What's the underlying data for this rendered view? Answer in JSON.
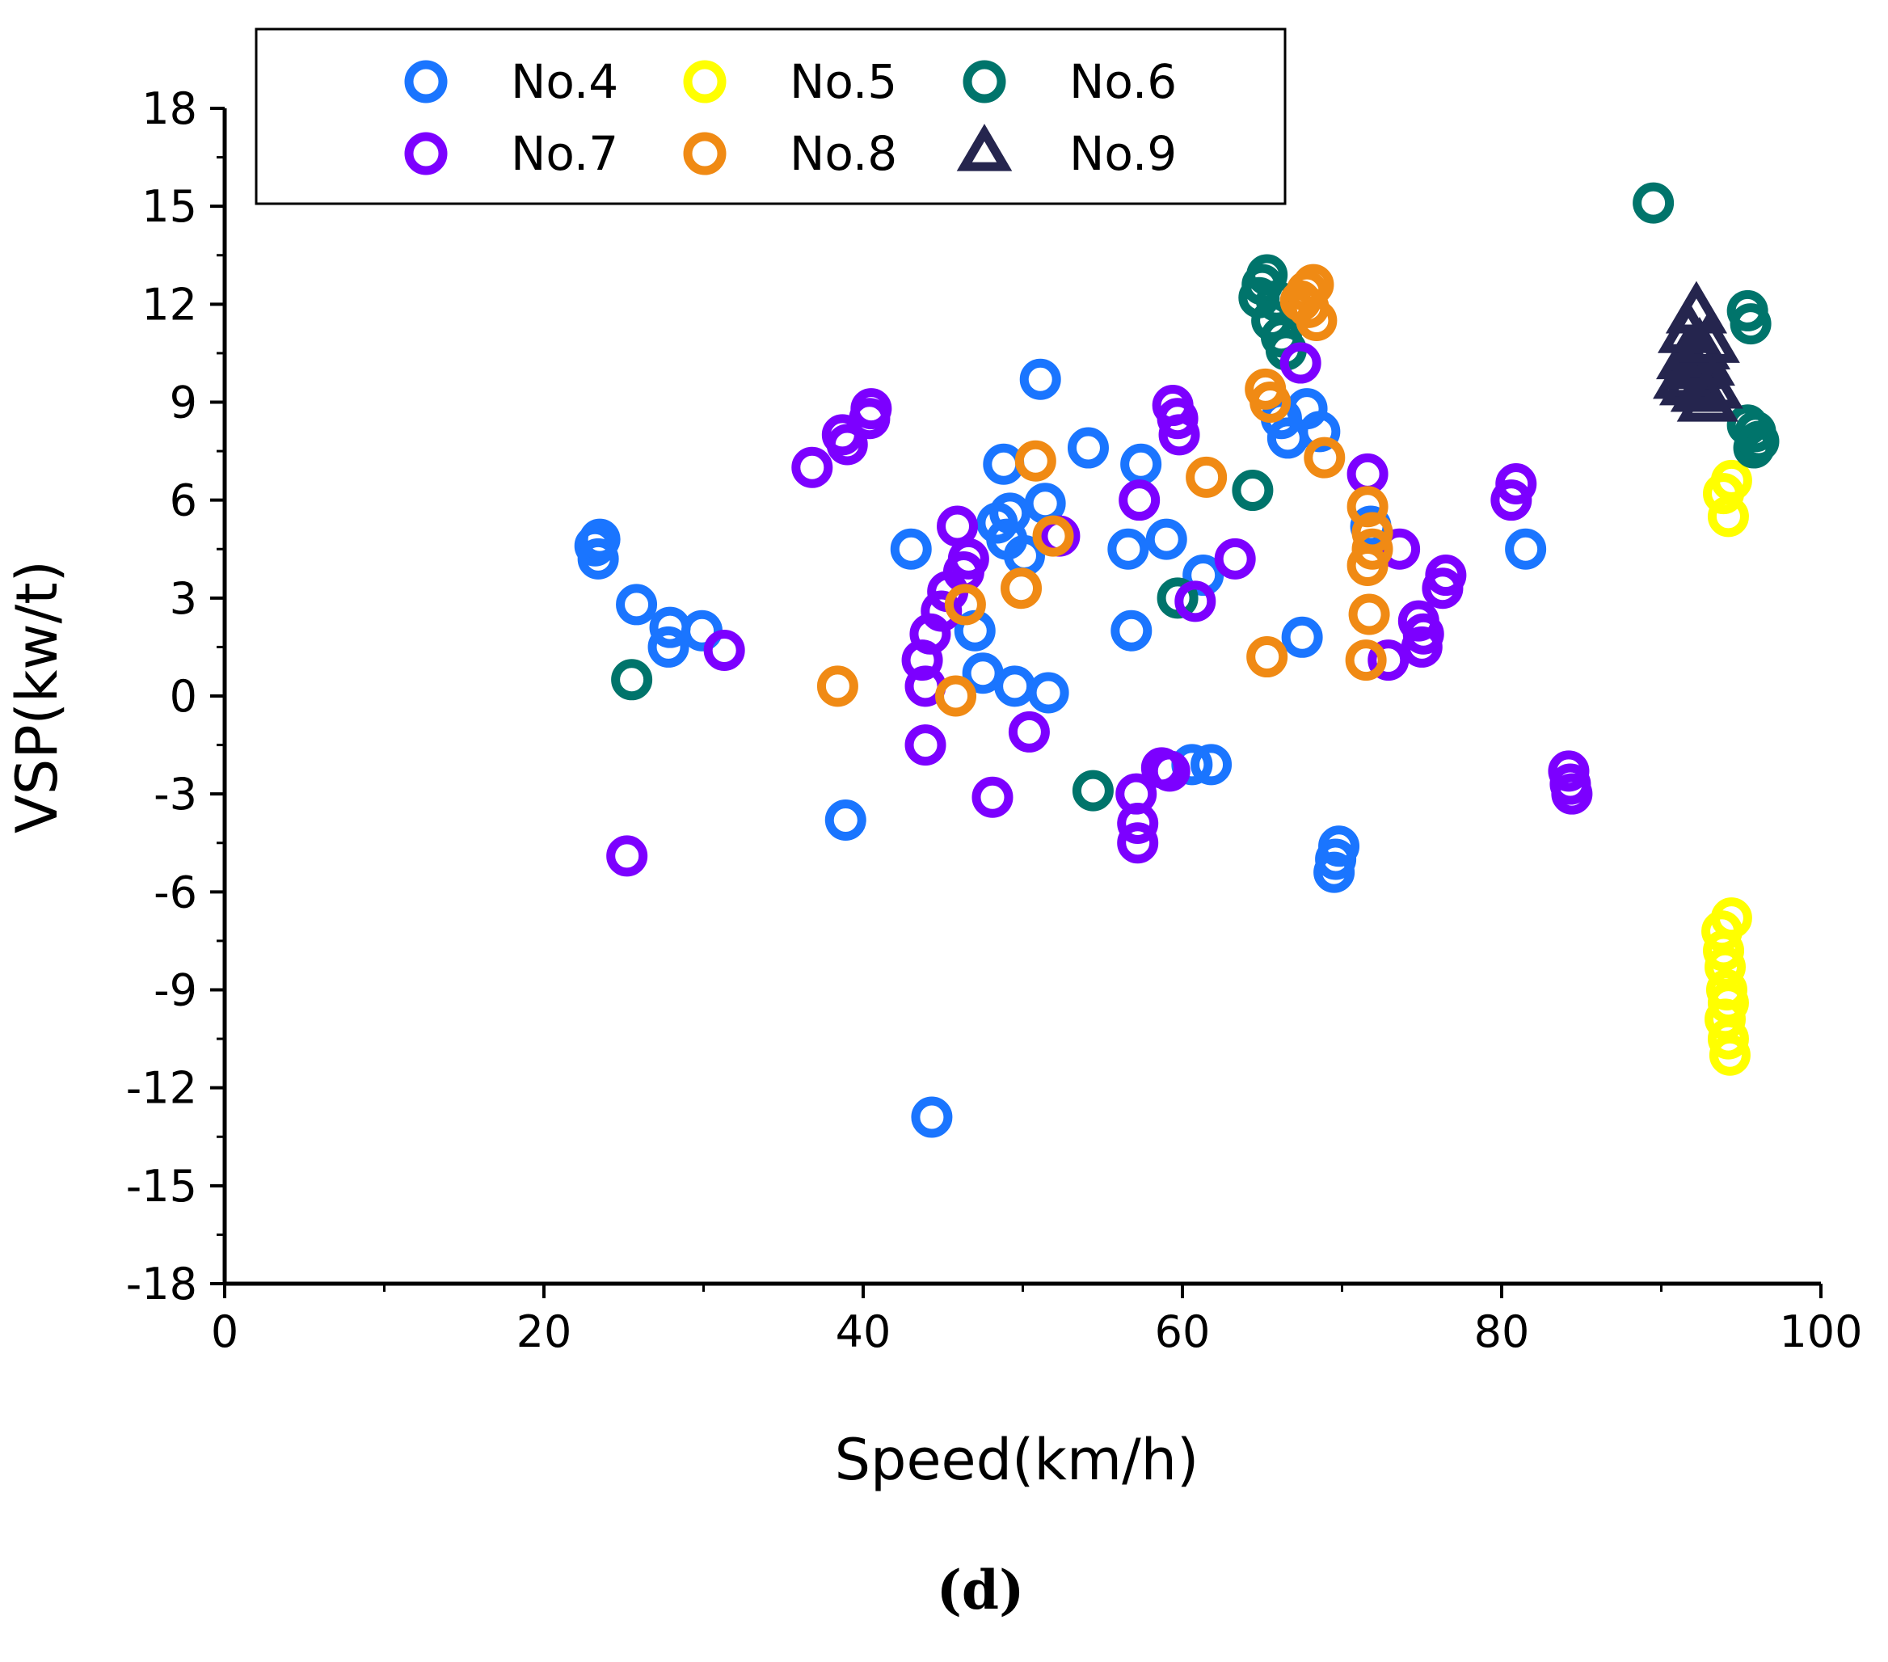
{
  "chart_data": {
    "type": "scatter",
    "title": "",
    "xlabel": "Speed(km/h)",
    "ylabel": "VSP(kw/t)",
    "panel_label": "(d)",
    "xlim": [
      0,
      100
    ],
    "ylim": [
      -18,
      18
    ],
    "x_major_ticks": [
      0,
      20,
      40,
      60,
      80,
      100
    ],
    "x_tick_labels": [
      "0",
      "20",
      "40",
      "60",
      "80",
      "100"
    ],
    "x_minor_ticks": [
      10,
      30,
      50,
      70,
      90
    ],
    "y_major_ticks": [
      18,
      15,
      12,
      9,
      6,
      3,
      0,
      -3,
      -6,
      -9,
      -12,
      -15,
      -18
    ],
    "y_tick_labels": [
      "18",
      "15",
      "12",
      "9",
      "6",
      "3",
      "0",
      "-3",
      "-6",
      "-9",
      "-12",
      "-15",
      "-18"
    ],
    "y_minor_ticks": [
      16.5,
      13.5,
      10.5,
      7.5,
      4.5,
      1.5,
      -1.5,
      -4.5,
      -7.5,
      -10.5,
      -13.5,
      -16.5
    ],
    "grid": false,
    "legend": {
      "placement": "top-left",
      "columns": 3,
      "entries": [
        "No.4",
        "No.5",
        "No.6",
        "No.7",
        "No.8",
        "No.9"
      ]
    },
    "series": [
      {
        "name": "No.4",
        "marker": "circle",
        "color": "#1a75ff",
        "points": [
          [
            23.2,
            4.6
          ],
          [
            23.4,
            4.2
          ],
          [
            23.5,
            4.8
          ],
          [
            25.8,
            2.8
          ],
          [
            27.9,
            2.1
          ],
          [
            27.8,
            1.5
          ],
          [
            29.9,
            2.0
          ],
          [
            38.9,
            -3.8
          ],
          [
            43.0,
            4.5
          ],
          [
            44.3,
            -12.9
          ],
          [
            47.0,
            2.0
          ],
          [
            47.5,
            0.7
          ],
          [
            48.4,
            5.3
          ],
          [
            48.8,
            7.1
          ],
          [
            49.0,
            4.8
          ],
          [
            49.2,
            5.6
          ],
          [
            49.5,
            0.3
          ],
          [
            50.1,
            4.3
          ],
          [
            51.1,
            9.7
          ],
          [
            51.4,
            5.9
          ],
          [
            51.6,
            0.1
          ],
          [
            54.1,
            7.6
          ],
          [
            56.6,
            4.5
          ],
          [
            56.8,
            2.0
          ],
          [
            57.4,
            7.1
          ],
          [
            59.0,
            4.8
          ],
          [
            60.6,
            -2.1
          ],
          [
            61.3,
            3.7
          ],
          [
            61.8,
            -2.1
          ],
          [
            66.2,
            8.5
          ],
          [
            66.6,
            7.9
          ],
          [
            67.5,
            1.8
          ],
          [
            67.8,
            8.8
          ],
          [
            68.6,
            8.1
          ],
          [
            69.6,
            -5.0
          ],
          [
            69.8,
            -4.6
          ],
          [
            69.5,
            -5.4
          ],
          [
            71.8,
            5.2
          ],
          [
            81.5,
            4.5
          ]
        ]
      },
      {
        "name": "No.5",
        "marker": "circle",
        "color": "#ffff00",
        "points": [
          [
            93.8,
            -7.2
          ],
          [
            93.9,
            -7.8
          ],
          [
            94.0,
            -8.3
          ],
          [
            94.1,
            -9.0
          ],
          [
            94.2,
            -9.4
          ],
          [
            94.0,
            -9.9
          ],
          [
            94.2,
            -10.5
          ],
          [
            94.3,
            -11.0
          ],
          [
            94.4,
            -6.8
          ],
          [
            93.9,
            6.2
          ],
          [
            94.2,
            5.5
          ],
          [
            94.4,
            6.6
          ]
        ]
      },
      {
        "name": "No.6",
        "marker": "circle",
        "color": "#00746b",
        "points": [
          [
            25.5,
            0.5
          ],
          [
            54.4,
            -2.9
          ],
          [
            59.7,
            3.0
          ],
          [
            64.4,
            6.3
          ],
          [
            64.8,
            12.2
          ],
          [
            65.0,
            12.6
          ],
          [
            65.3,
            12.9
          ],
          [
            65.6,
            11.5
          ],
          [
            65.9,
            12.1
          ],
          [
            66.2,
            11.0
          ],
          [
            66.5,
            10.6
          ],
          [
            89.5,
            15.1
          ],
          [
            95.4,
            11.8
          ],
          [
            95.6,
            11.4
          ],
          [
            95.4,
            8.3
          ],
          [
            95.8,
            7.6
          ],
          [
            95.9,
            8.1
          ],
          [
            96.1,
            7.8
          ]
        ]
      },
      {
        "name": "No.7",
        "marker": "circle",
        "color": "#7c00ff",
        "points": [
          [
            25.2,
            -4.9
          ],
          [
            31.3,
            1.4
          ],
          [
            36.8,
            7.0
          ],
          [
            38.7,
            8.0
          ],
          [
            39.0,
            7.7
          ],
          [
            40.4,
            8.5
          ],
          [
            40.5,
            8.8
          ],
          [
            43.7,
            1.1
          ],
          [
            43.9,
            0.3
          ],
          [
            43.9,
            -1.5
          ],
          [
            44.2,
            1.9
          ],
          [
            44.9,
            2.6
          ],
          [
            45.3,
            3.2
          ],
          [
            45.9,
            5.2
          ],
          [
            46.3,
            3.8
          ],
          [
            46.6,
            4.2
          ],
          [
            48.1,
            -3.1
          ],
          [
            50.4,
            -1.1
          ],
          [
            52.3,
            4.9
          ],
          [
            57.1,
            -3.0
          ],
          [
            57.2,
            -3.9
          ],
          [
            57.2,
            -4.5
          ],
          [
            57.3,
            6.0
          ],
          [
            58.7,
            -2.2
          ],
          [
            59.2,
            -2.3
          ],
          [
            59.4,
            8.9
          ],
          [
            59.7,
            8.5
          ],
          [
            59.8,
            8.0
          ],
          [
            60.8,
            2.9
          ],
          [
            63.3,
            4.2
          ],
          [
            67.4,
            10.2
          ],
          [
            71.6,
            6.8
          ],
          [
            72.9,
            1.1
          ],
          [
            73.6,
            4.5
          ],
          [
            74.8,
            2.3
          ],
          [
            75.1,
            1.9
          ],
          [
            75.0,
            1.5
          ],
          [
            76.3,
            3.3
          ],
          [
            76.5,
            3.7
          ],
          [
            80.6,
            6.0
          ],
          [
            80.9,
            6.5
          ],
          [
            84.2,
            -2.3
          ],
          [
            84.3,
            -2.7
          ],
          [
            84.4,
            -3.0
          ]
        ]
      },
      {
        "name": "No.8",
        "marker": "circle",
        "color": "#f08a14",
        "points": [
          [
            38.4,
            0.3
          ],
          [
            45.8,
            0.0
          ],
          [
            46.4,
            2.8
          ],
          [
            49.9,
            3.3
          ],
          [
            50.8,
            7.2
          ],
          [
            51.9,
            4.9
          ],
          [
            61.5,
            6.7
          ],
          [
            65.3,
            1.2
          ],
          [
            65.2,
            9.4
          ],
          [
            65.5,
            9.0
          ],
          [
            67.4,
            12.1
          ],
          [
            67.8,
            12.4
          ],
          [
            68.2,
            12.6
          ],
          [
            67.9,
            11.9
          ],
          [
            68.4,
            11.5
          ],
          [
            68.9,
            7.3
          ],
          [
            71.5,
            1.1
          ],
          [
            71.6,
            5.8
          ],
          [
            71.7,
            2.5
          ],
          [
            71.6,
            4.0
          ],
          [
            71.9,
            4.5
          ],
          [
            71.9,
            5.0
          ]
        ]
      },
      {
        "name": "No.9",
        "marker": "triangle",
        "color": "#25254e",
        "points": [
          [
            91.4,
            9.7
          ],
          [
            91.6,
            10.3
          ],
          [
            91.7,
            11.1
          ],
          [
            91.8,
            9.5
          ],
          [
            92.0,
            10.0
          ],
          [
            92.2,
            11.7
          ],
          [
            92.4,
            10.6
          ],
          [
            92.5,
            9.3
          ],
          [
            92.7,
            10.1
          ],
          [
            92.9,
            9.0
          ],
          [
            93.0,
            10.8
          ],
          [
            93.2,
            9.4
          ]
        ]
      }
    ]
  }
}
